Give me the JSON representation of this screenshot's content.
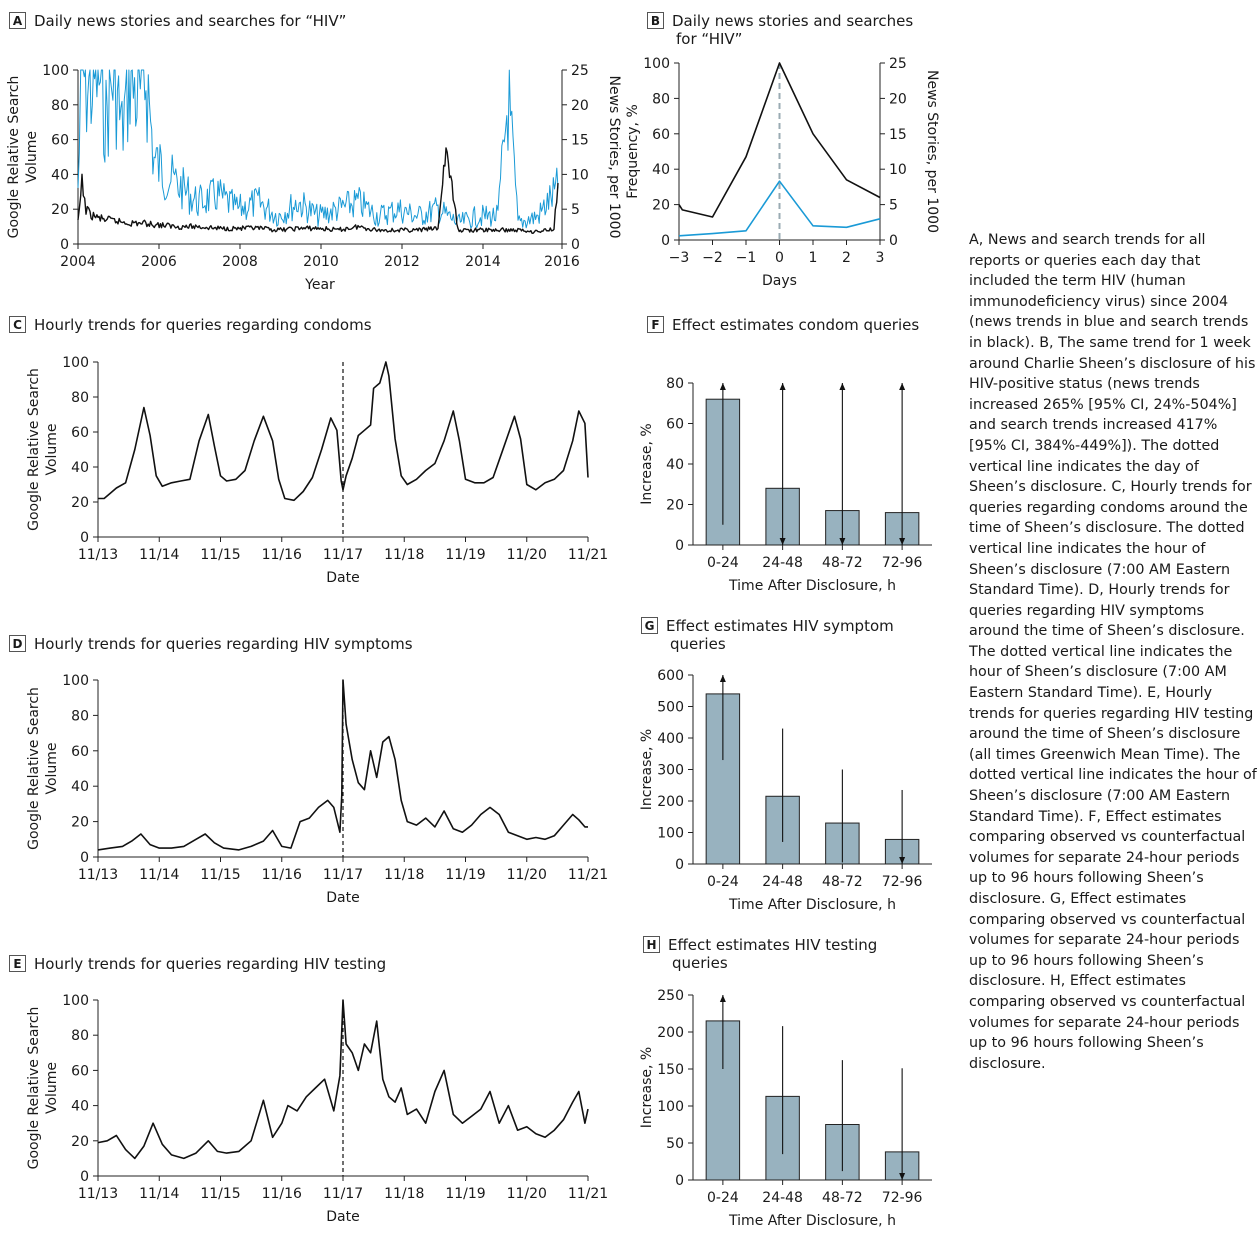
{
  "caption": "A, News and search trends for all reports or queries each day that included the term HIV (human immunodeficiency virus) since 2004 (news trends in blue and search trends in black). B, The same trend for 1 week around Charlie Sheen’s disclosure of his HIV-positive status (news trends increased 265% [95% CI, 24%-504%] and search trends increased 417% [95% CI, 384%-449%]). The dotted vertical line indicates the day of Sheen’s disclosure. C, Hourly trends for queries regarding condoms around the time of Sheen’s disclosure. The dotted vertical line indicates the hour of Sheen’s disclosure (7:00 AM Eastern Standard Time). D, Hourly trends for queries regarding HIV symptoms around the time of Sheen’s disclosure. The dotted vertical line indicates the hour of Sheen’s disclosure (7:00 AM Eastern Standard Time). E, Hourly trends for queries regarding HIV testing around the time of Sheen’s disclosure (all times Greenwich Mean Time). The dotted vertical line indicates the hour of Sheen’s disclosure (7:00 AM Eastern Standard Time). F, Effect estimates comparing observed vs counterfactual volumes for separate 24-hour periods up to 96 hours following Sheen’s disclosure. G, Effect estimates comparing observed vs counterfactual volumes for separate 24-hour periods up to 96 hours following Sheen’s disclosure. H, Effect estimates comparing observed vs counterfactual volumes for separate 24-hour periods up to 96 hours following Sheen’s disclosure.",
  "colors": {
    "news": "#1a9ad6",
    "search": "#111111",
    "bar": "#98b2bf",
    "dashed_gray": "#9aabb3"
  },
  "chart_data": [
    {
      "id": "A",
      "type": "line",
      "letter": "A",
      "title": "Daily news stories and searches for “HIV”",
      "xlabel": "Year",
      "ylabel": "Google Relative Search Volume",
      "ylabel_lines": [
        "Google Relative Search",
        "Volume"
      ],
      "y2label": "News Stories, per 1000",
      "xlim": [
        2004,
        2016.1
      ],
      "ylim": [
        0,
        100
      ],
      "y2lim": [
        0,
        25
      ],
      "xticks": [
        "2004",
        "2006",
        "2008",
        "2010",
        "2012",
        "2014",
        "2016"
      ],
      "yticks": [
        "0",
        "20",
        "40",
        "60",
        "80",
        "100"
      ],
      "y2ticks": [
        "0",
        "5",
        "10",
        "15",
        "20",
        "25"
      ],
      "series": [
        {
          "color_key": "news",
          "axis": "right",
          "x": [
            2004.0,
            2004.1,
            2004.3,
            2004.5,
            2004.7,
            2004.9,
            2005.1,
            2005.3,
            2005.5,
            2005.7,
            2005.9,
            2006.2,
            2006.6,
            2007.0,
            2007.5,
            2008.0,
            2008.5,
            2009.0,
            2009.5,
            2010.0,
            2010.5,
            2011.0,
            2011.5,
            2012.0,
            2012.5,
            2013.0,
            2013.5,
            2014.0,
            2014.5,
            2014.75,
            2015.0,
            2015.5,
            2016.0
          ],
          "values": [
            8,
            25,
            22,
            25,
            18,
            25,
            16,
            25,
            20,
            25,
            12,
            10,
            8,
            6,
            7,
            5,
            6,
            4,
            6,
            4,
            5,
            6,
            4,
            5,
            4,
            5,
            3,
            4,
            4,
            21,
            3,
            4,
            8
          ]
        },
        {
          "color_key": "search",
          "axis": "left",
          "x": [
            2004.0,
            2004.1,
            2004.2,
            2004.3,
            2004.5,
            2004.7,
            2005.0,
            2005.3,
            2005.6,
            2006.0,
            2006.5,
            2007.0,
            2007.5,
            2008.0,
            2008.5,
            2009.0,
            2009.5,
            2010.0,
            2010.5,
            2011.0,
            2011.5,
            2012.0,
            2012.5,
            2013.0,
            2013.2,
            2013.5,
            2014.0,
            2014.5,
            2015.0,
            2015.5,
            2015.9,
            2016.0
          ],
          "values": [
            12,
            35,
            20,
            17,
            15,
            14,
            13,
            12,
            12,
            11,
            10,
            10,
            9,
            9,
            9,
            8,
            9,
            9,
            8,
            10,
            8,
            8,
            8,
            9,
            55,
            8,
            8,
            8,
            8,
            7,
            9,
            35
          ]
        }
      ]
    },
    {
      "id": "B",
      "type": "line",
      "letter": "B",
      "title_lines": [
        "Daily news stories and searches",
        "for “HIV”"
      ],
      "xlabel": "Days",
      "ylabel": "Frequency, %",
      "y2label": "News Stories, per 1000",
      "xlim": [
        -3,
        3
      ],
      "ylim": [
        0,
        100
      ],
      "y2lim": [
        0,
        25
      ],
      "xticks": [
        "−3",
        "−2",
        "−1",
        "0",
        "1",
        "2",
        "3"
      ],
      "yticks": [
        "0",
        "20",
        "40",
        "60",
        "80",
        "100"
      ],
      "y2ticks": [
        "0",
        "5",
        "10",
        "15",
        "20",
        "25"
      ],
      "series": [
        {
          "color_key": "search",
          "axis": "left",
          "x": [
            -3,
            -2.9,
            -2,
            -1,
            0,
            1,
            2,
            3
          ],
          "values": [
            20,
            17,
            13,
            47,
            100,
            60,
            34,
            24
          ]
        },
        {
          "color_key": "news",
          "axis": "right",
          "x": [
            -3,
            -2,
            -1,
            0,
            1,
            2,
            3
          ],
          "values": [
            0.6,
            0.9,
            1.3,
            8.3,
            2.0,
            1.8,
            3.0
          ]
        }
      ],
      "marker_x": 0
    },
    {
      "id": "C",
      "type": "line",
      "letter": "C",
      "title": "Hourly trends for queries regarding condoms",
      "xlabel": "Date",
      "ylabel": "Google Relative Search Volume",
      "ylabel_lines": [
        "Google Relative Search",
        "Volume"
      ],
      "xlim": [
        0,
        8
      ],
      "ylim": [
        0,
        100
      ],
      "xticks": [
        "11/13",
        "11/14",
        "11/15",
        "11/16",
        "11/17",
        "11/18",
        "11/19",
        "11/20",
        "11/21"
      ],
      "yticks": [
        "0",
        "20",
        "40",
        "60",
        "80",
        "100"
      ],
      "series": [
        {
          "color_key": "search",
          "x": [
            0,
            0.1,
            0.2,
            0.3,
            0.45,
            0.6,
            0.75,
            0.85,
            0.95,
            1.05,
            1.2,
            1.35,
            1.5,
            1.65,
            1.8,
            1.9,
            2.0,
            2.1,
            2.25,
            2.4,
            2.55,
            2.7,
            2.85,
            2.95,
            3.05,
            3.2,
            3.35,
            3.5,
            3.65,
            3.8,
            3.9,
            3.97,
            4.0,
            4.05,
            4.15,
            4.25,
            4.35,
            4.45,
            4.5,
            4.6,
            4.7,
            4.75,
            4.85,
            4.95,
            5.05,
            5.2,
            5.35,
            5.5,
            5.65,
            5.8,
            5.9,
            6.0,
            6.15,
            6.3,
            6.45,
            6.6,
            6.8,
            6.9,
            7.0,
            7.15,
            7.3,
            7.45,
            7.6,
            7.75,
            7.85,
            7.95,
            8.0
          ],
          "values": [
            22,
            22,
            25,
            28,
            31,
            50,
            74,
            58,
            35,
            29,
            31,
            32,
            33,
            55,
            70,
            52,
            35,
            32,
            33,
            38,
            55,
            69,
            55,
            33,
            22,
            21,
            26,
            34,
            50,
            68,
            61,
            32,
            27,
            35,
            45,
            58,
            61,
            64,
            85,
            88,
            100,
            92,
            56,
            35,
            30,
            33,
            38,
            42,
            55,
            72,
            55,
            33,
            31,
            31,
            34,
            49,
            69,
            56,
            30,
            27,
            31,
            33,
            38,
            55,
            72,
            65,
            34
          ]
        }
      ],
      "marker_x": 4
    },
    {
      "id": "D",
      "type": "line",
      "letter": "D",
      "title": "Hourly trends for queries regarding HIV symptoms",
      "xlabel": "Date",
      "ylabel": "Google Relative Search Volume",
      "ylabel_lines": [
        "Google Relative Search",
        "Volume"
      ],
      "xlim": [
        0,
        8
      ],
      "ylim": [
        0,
        100
      ],
      "xticks": [
        "11/13",
        "11/14",
        "11/15",
        "11/16",
        "11/17",
        "11/18",
        "11/19",
        "11/20",
        "11/21"
      ],
      "yticks": [
        "0",
        "20",
        "40",
        "60",
        "80",
        "100"
      ],
      "series": [
        {
          "color_key": "search",
          "x": [
            0,
            0.2,
            0.4,
            0.55,
            0.7,
            0.85,
            1.0,
            1.2,
            1.4,
            1.6,
            1.75,
            1.9,
            2.05,
            2.3,
            2.5,
            2.7,
            2.85,
            3.0,
            3.15,
            3.3,
            3.45,
            3.6,
            3.75,
            3.85,
            3.95,
            3.98,
            4.0,
            4.05,
            4.15,
            4.25,
            4.35,
            4.45,
            4.55,
            4.65,
            4.75,
            4.85,
            4.95,
            5.05,
            5.2,
            5.35,
            5.5,
            5.65,
            5.8,
            5.95,
            6.1,
            6.25,
            6.4,
            6.55,
            6.7,
            6.85,
            7.0,
            7.15,
            7.3,
            7.45,
            7.6,
            7.75,
            7.85,
            7.95,
            8.0
          ],
          "values": [
            4,
            5,
            6,
            9,
            13,
            7,
            5,
            5,
            6,
            10,
            13,
            8,
            5,
            4,
            6,
            9,
            15,
            6,
            5,
            20,
            22,
            28,
            32,
            28,
            14,
            35,
            100,
            75,
            55,
            42,
            38,
            60,
            45,
            65,
            68,
            55,
            32,
            20,
            18,
            22,
            17,
            26,
            16,
            14,
            18,
            24,
            28,
            24,
            14,
            12,
            10,
            11,
            10,
            12,
            18,
            24,
            21,
            17,
            17
          ]
        }
      ],
      "marker_x": 4
    },
    {
      "id": "E",
      "type": "line",
      "letter": "E",
      "title": "Hourly trends for queries regarding HIV testing",
      "xlabel": "Date",
      "ylabel": "Google Relative Search Volume",
      "ylabel_lines": [
        "Google Relative Search",
        "Volume"
      ],
      "xlim": [
        0,
        8
      ],
      "ylim": [
        0,
        100
      ],
      "xticks": [
        "11/13",
        "11/14",
        "11/15",
        "11/16",
        "11/17",
        "11/18",
        "11/19",
        "11/20",
        "11/21"
      ],
      "yticks": [
        "0",
        "20",
        "40",
        "60",
        "80",
        "100"
      ],
      "series": [
        {
          "color_key": "search",
          "x": [
            0,
            0.15,
            0.3,
            0.45,
            0.6,
            0.75,
            0.9,
            1.05,
            1.2,
            1.4,
            1.6,
            1.8,
            1.95,
            2.1,
            2.3,
            2.5,
            2.7,
            2.85,
            3.0,
            3.1,
            3.25,
            3.4,
            3.55,
            3.7,
            3.85,
            3.95,
            4.0,
            4.05,
            4.15,
            4.25,
            4.35,
            4.45,
            4.55,
            4.65,
            4.75,
            4.85,
            4.95,
            5.05,
            5.2,
            5.35,
            5.5,
            5.65,
            5.8,
            5.95,
            6.1,
            6.25,
            6.4,
            6.55,
            6.7,
            6.85,
            7.0,
            7.15,
            7.3,
            7.45,
            7.6,
            7.75,
            7.85,
            7.95,
            8.0
          ],
          "values": [
            19,
            20,
            23,
            15,
            10,
            17,
            30,
            18,
            12,
            10,
            13,
            20,
            14,
            13,
            14,
            20,
            43,
            22,
            30,
            40,
            37,
            45,
            50,
            55,
            37,
            57,
            100,
            75,
            70,
            60,
            75,
            70,
            88,
            55,
            45,
            42,
            50,
            35,
            38,
            30,
            48,
            60,
            35,
            30,
            34,
            38,
            48,
            30,
            40,
            26,
            28,
            24,
            22,
            26,
            32,
            42,
            48,
            30,
            38
          ]
        }
      ],
      "marker_x": 4
    },
    {
      "id": "F",
      "type": "bar",
      "letter": "F",
      "title": "Effect estimates condom queries",
      "xlabel": "Time After Disclosure, h",
      "ylabel": "Increase, %",
      "categories": [
        "0-24",
        "24-48",
        "48-72",
        "72-96"
      ],
      "values": [
        72,
        28,
        17,
        16
      ],
      "ci_low": [
        10,
        0,
        0,
        0
      ],
      "ci_high": [
        80,
        80,
        80,
        80
      ],
      "arrow_up": [
        true,
        true,
        true,
        true
      ],
      "arrow_down": [
        false,
        true,
        true,
        true
      ],
      "ylim": [
        0,
        80
      ],
      "yticks": [
        "0",
        "20",
        "40",
        "60",
        "80"
      ]
    },
    {
      "id": "G",
      "type": "bar",
      "letter": "G",
      "title_lines": [
        "Effect estimates HIV symptom",
        "queries"
      ],
      "xlabel": "Time After Disclosure, h",
      "ylabel": "Increase, %",
      "categories": [
        "0-24",
        "24-48",
        "48-72",
        "72-96"
      ],
      "values": [
        540,
        215,
        130,
        78
      ],
      "ci_low": [
        330,
        70,
        5,
        0
      ],
      "ci_high": [
        600,
        430,
        300,
        235
      ],
      "arrow_up": [
        true,
        false,
        false,
        false
      ],
      "arrow_down": [
        false,
        false,
        false,
        true
      ],
      "ylim": [
        0,
        600
      ],
      "yticks": [
        "0",
        "100",
        "200",
        "300",
        "400",
        "500",
        "600"
      ]
    },
    {
      "id": "H",
      "type": "bar",
      "letter": "H",
      "title_lines": [
        "Effect estimates HIV testing",
        "queries"
      ],
      "xlabel": "Time After Disclosure, h",
      "ylabel": "Increase, %",
      "categories": [
        "0-24",
        "24-48",
        "48-72",
        "72-96"
      ],
      "values": [
        215,
        113,
        75,
        38
      ],
      "ci_low": [
        150,
        35,
        12,
        0
      ],
      "ci_high": [
        250,
        208,
        162,
        151
      ],
      "arrow_up": [
        true,
        false,
        false,
        false
      ],
      "arrow_down": [
        false,
        false,
        false,
        true
      ],
      "ylim": [
        0,
        250
      ],
      "yticks": [
        "0",
        "50",
        "100",
        "150",
        "200",
        "250"
      ]
    }
  ]
}
